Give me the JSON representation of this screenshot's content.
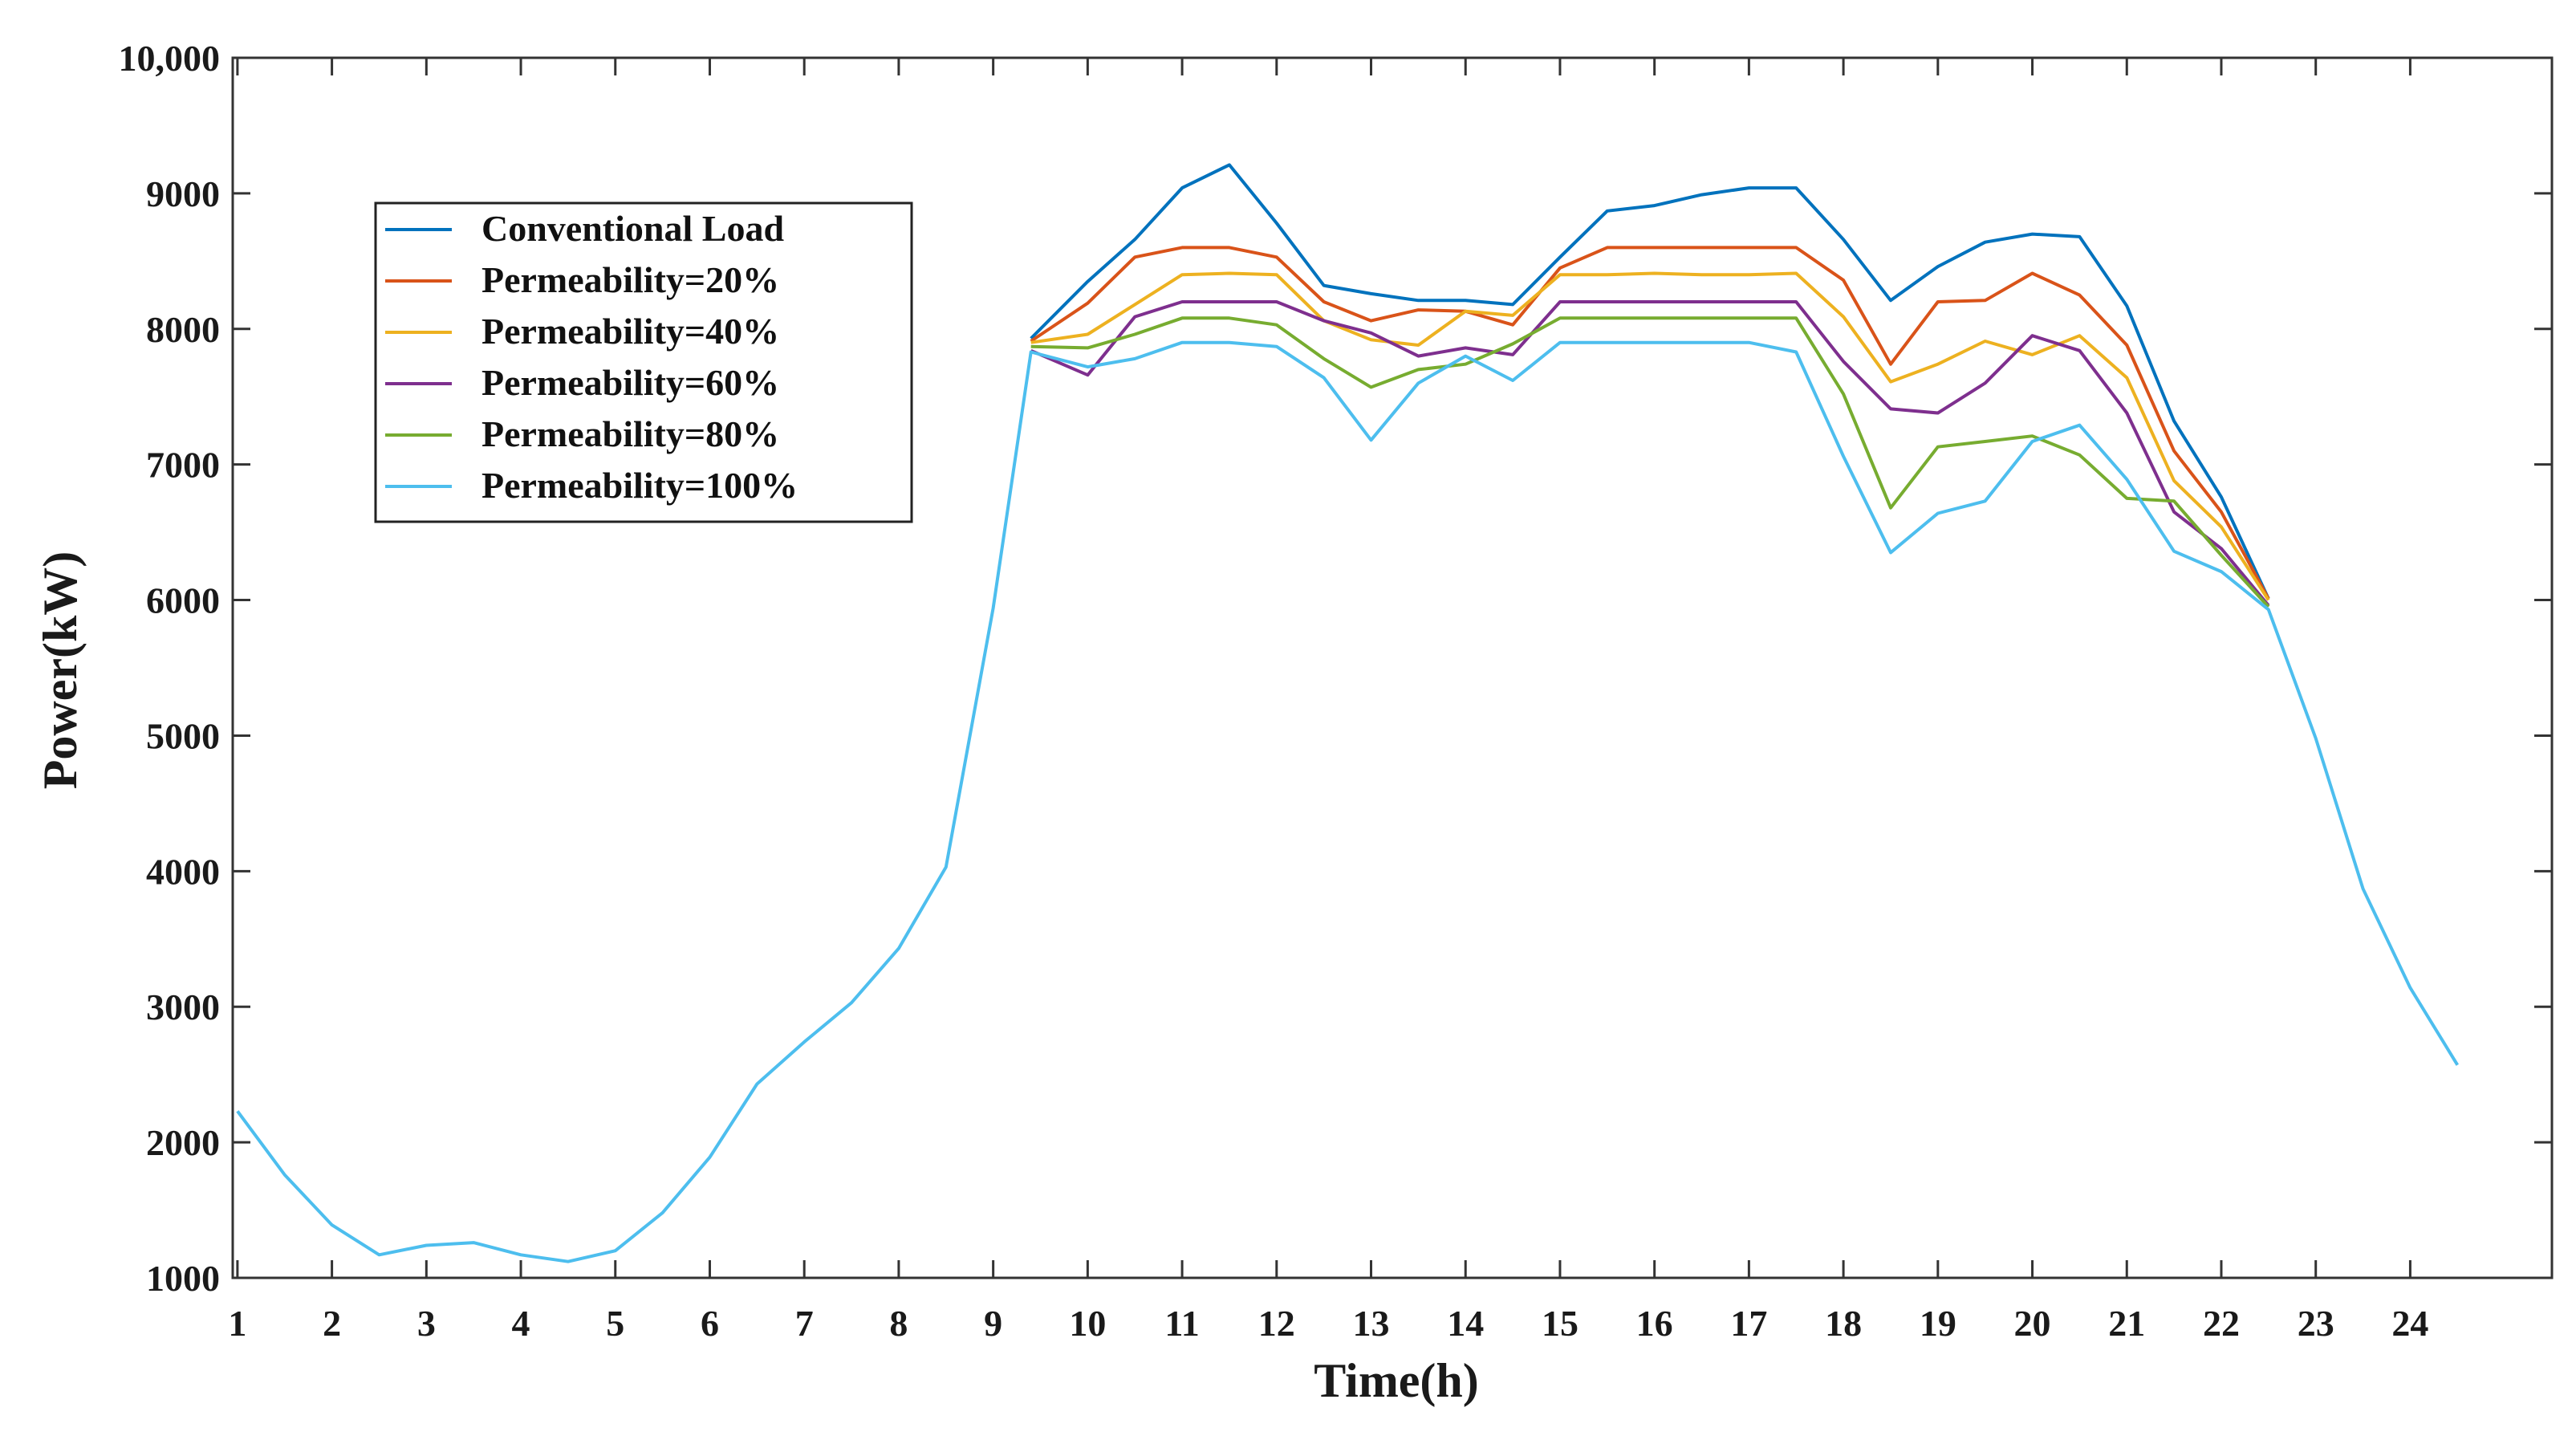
{
  "chart_data": {
    "type": "line",
    "xlabel": "Time(h)",
    "ylabel": "Power(kW)",
    "xlim": [
      0.95,
      25.5
    ],
    "ylim": [
      1000,
      10000
    ],
    "x_ticks": [
      1,
      2,
      3,
      4,
      5,
      6,
      7,
      8,
      9,
      10,
      11,
      12,
      13,
      14,
      15,
      16,
      17,
      18,
      19,
      20,
      21,
      22,
      23,
      24
    ],
    "y_ticks": [
      {
        "value": 1000,
        "label": "1000"
      },
      {
        "value": 2000,
        "label": "2000"
      },
      {
        "value": 3000,
        "label": "3000"
      },
      {
        "value": 4000,
        "label": "4000"
      },
      {
        "value": 5000,
        "label": "5000"
      },
      {
        "value": 6000,
        "label": "6000"
      },
      {
        "value": 7000,
        "label": "7000"
      },
      {
        "value": 8000,
        "label": "8000"
      },
      {
        "value": 9000,
        "label": "9000"
      },
      {
        "value": 10000,
        "label": "10,000"
      }
    ],
    "legend_position": "upper-left",
    "series": [
      {
        "name": "Conventional Load",
        "color": "#0072BD",
        "points": [
          [
            9.4,
            7930
          ],
          [
            10,
            8350
          ],
          [
            10.5,
            8660
          ],
          [
            11,
            9040
          ],
          [
            11.5,
            9210
          ],
          [
            12,
            8780
          ],
          [
            12.5,
            8320
          ],
          [
            13,
            8260
          ],
          [
            13.5,
            8210
          ],
          [
            14,
            8210
          ],
          [
            14.5,
            8180
          ],
          [
            15,
            8530
          ],
          [
            15.5,
            8870
          ],
          [
            16,
            8910
          ],
          [
            16.5,
            8990
          ],
          [
            17,
            9040
          ],
          [
            17.5,
            9040
          ],
          [
            18,
            8660
          ],
          [
            18.5,
            8210
          ],
          [
            19,
            8460
          ],
          [
            19.5,
            8640
          ],
          [
            20,
            8700
          ],
          [
            20.5,
            8680
          ],
          [
            21,
            8170
          ],
          [
            21.5,
            7320
          ],
          [
            22,
            6760
          ],
          [
            22.5,
            6010
          ]
        ]
      },
      {
        "name": "Permeability=20%",
        "color": "#D95319",
        "points": [
          [
            9.4,
            7910
          ],
          [
            10,
            8190
          ],
          [
            10.5,
            8530
          ],
          [
            11,
            8600
          ],
          [
            11.5,
            8600
          ],
          [
            12,
            8530
          ],
          [
            12.5,
            8200
          ],
          [
            13,
            8060
          ],
          [
            13.5,
            8140
          ],
          [
            14,
            8130
          ],
          [
            14.5,
            8030
          ],
          [
            15,
            8450
          ],
          [
            15.5,
            8600
          ],
          [
            16,
            8600
          ],
          [
            16.5,
            8600
          ],
          [
            17,
            8600
          ],
          [
            17.5,
            8600
          ],
          [
            18,
            8360
          ],
          [
            18.5,
            7740
          ],
          [
            19,
            8200
          ],
          [
            19.5,
            8210
          ],
          [
            20,
            8410
          ],
          [
            20.5,
            8250
          ],
          [
            21,
            7880
          ],
          [
            21.5,
            7100
          ],
          [
            22,
            6650
          ],
          [
            22.5,
            6010
          ]
        ]
      },
      {
        "name": "Permeability=40%",
        "color": "#EDB120",
        "points": [
          [
            9.4,
            7900
          ],
          [
            10,
            7960
          ],
          [
            10.5,
            8180
          ],
          [
            11,
            8400
          ],
          [
            11.5,
            8410
          ],
          [
            12,
            8400
          ],
          [
            12.5,
            8060
          ],
          [
            13,
            7920
          ],
          [
            13.5,
            7880
          ],
          [
            14,
            8130
          ],
          [
            14.5,
            8100
          ],
          [
            15,
            8400
          ],
          [
            15.5,
            8400
          ],
          [
            16,
            8410
          ],
          [
            16.5,
            8400
          ],
          [
            17,
            8400
          ],
          [
            17.5,
            8410
          ],
          [
            18,
            8090
          ],
          [
            18.5,
            7610
          ],
          [
            19,
            7740
          ],
          [
            19.5,
            7910
          ],
          [
            20,
            7810
          ],
          [
            20.5,
            7950
          ],
          [
            21,
            7640
          ],
          [
            21.5,
            6880
          ],
          [
            22,
            6540
          ],
          [
            22.5,
            6000
          ]
        ]
      },
      {
        "name": "Permeability=60%",
        "color": "#7E2F8E",
        "points": [
          [
            9.4,
            7840
          ],
          [
            10,
            7660
          ],
          [
            10.5,
            8090
          ],
          [
            11,
            8200
          ],
          [
            11.5,
            8200
          ],
          [
            12,
            8200
          ],
          [
            12.5,
            8060
          ],
          [
            13,
            7970
          ],
          [
            13.5,
            7800
          ],
          [
            14,
            7860
          ],
          [
            14.5,
            7810
          ],
          [
            15,
            8200
          ],
          [
            15.5,
            8200
          ],
          [
            16,
            8200
          ],
          [
            16.5,
            8200
          ],
          [
            17,
            8200
          ],
          [
            17.5,
            8200
          ],
          [
            18,
            7760
          ],
          [
            18.5,
            7410
          ],
          [
            19,
            7380
          ],
          [
            19.5,
            7600
          ],
          [
            20,
            7950
          ],
          [
            20.5,
            7840
          ],
          [
            21,
            7380
          ],
          [
            21.5,
            6650
          ],
          [
            22,
            6380
          ],
          [
            22.5,
            5960
          ]
        ]
      },
      {
        "name": "Permeability=80%",
        "color": "#77AC30",
        "points": [
          [
            9.4,
            7870
          ],
          [
            10,
            7860
          ],
          [
            10.5,
            7960
          ],
          [
            11,
            8080
          ],
          [
            11.5,
            8080
          ],
          [
            12,
            8030
          ],
          [
            12.5,
            7780
          ],
          [
            13,
            7570
          ],
          [
            13.5,
            7700
          ],
          [
            14,
            7740
          ],
          [
            14.5,
            7890
          ],
          [
            15,
            8080
          ],
          [
            15.5,
            8080
          ],
          [
            16,
            8080
          ],
          [
            16.5,
            8080
          ],
          [
            17,
            8080
          ],
          [
            17.5,
            8080
          ],
          [
            18,
            7520
          ],
          [
            18.5,
            6680
          ],
          [
            19,
            7130
          ],
          [
            19.5,
            7170
          ],
          [
            20,
            7210
          ],
          [
            20.5,
            7070
          ],
          [
            21,
            6750
          ],
          [
            21.5,
            6730
          ],
          [
            22,
            6330
          ],
          [
            22.5,
            5950
          ]
        ]
      },
      {
        "name": "Permeability=100%",
        "color": "#4DBEEE",
        "points": [
          [
            1,
            2230
          ],
          [
            1.5,
            1760
          ],
          [
            2,
            1390
          ],
          [
            2.5,
            1170
          ],
          [
            3,
            1240
          ],
          [
            3.5,
            1260
          ],
          [
            4,
            1170
          ],
          [
            4.5,
            1120
          ],
          [
            5,
            1200
          ],
          [
            5.5,
            1480
          ],
          [
            6,
            1890
          ],
          [
            6.5,
            2430
          ],
          [
            7,
            2740
          ],
          [
            7.5,
            3030
          ],
          [
            8,
            3430
          ],
          [
            8.5,
            4030
          ],
          [
            9,
            5940
          ],
          [
            9.4,
            7830
          ],
          [
            10,
            7720
          ],
          [
            10.5,
            7780
          ],
          [
            11,
            7900
          ],
          [
            11.5,
            7900
          ],
          [
            12,
            7870
          ],
          [
            12.5,
            7640
          ],
          [
            13,
            7180
          ],
          [
            13.5,
            7600
          ],
          [
            14,
            7800
          ],
          [
            14.5,
            7620
          ],
          [
            15,
            7900
          ],
          [
            15.5,
            7900
          ],
          [
            16,
            7900
          ],
          [
            16.5,
            7900
          ],
          [
            17,
            7900
          ],
          [
            17.5,
            7830
          ],
          [
            18,
            7060
          ],
          [
            18.5,
            6350
          ],
          [
            19,
            6640
          ],
          [
            19.5,
            6730
          ],
          [
            20,
            7170
          ],
          [
            20.5,
            7290
          ],
          [
            21,
            6890
          ],
          [
            21.5,
            6360
          ],
          [
            22,
            6210
          ],
          [
            22.5,
            5930
          ],
          [
            23,
            4980
          ],
          [
            23.5,
            3870
          ],
          [
            24,
            3140
          ],
          [
            24.5,
            2570
          ]
        ]
      }
    ]
  }
}
